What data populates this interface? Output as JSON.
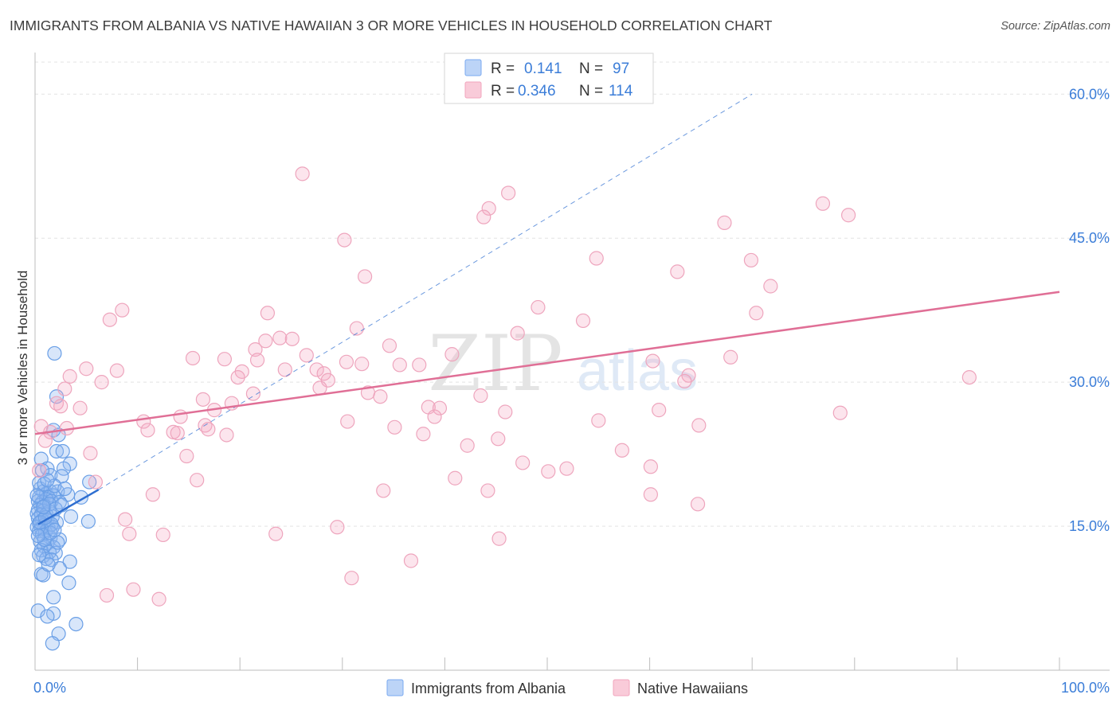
{
  "chart_data": {
    "type": "scatter",
    "title": "IMMIGRANTS FROM ALBANIA VS NATIVE HAWAIIAN 3 OR MORE VEHICLES IN HOUSEHOLD CORRELATION CHART",
    "source": "Source: ZipAtlas.com",
    "watermark": {
      "zip": "ZIP",
      "atlas": "atlas"
    },
    "ylabel": "3 or more Vehicles in Household",
    "xlim": [
      0,
      100
    ],
    "ylim": [
      0,
      64
    ],
    "x_tick_labels": [
      {
        "value": 0,
        "label": "0.0%"
      },
      {
        "value": 100,
        "label": "100.0%"
      }
    ],
    "y_tick_labels": [
      {
        "value": 15,
        "label": "15.0%"
      },
      {
        "value": 30,
        "label": "30.0%"
      },
      {
        "value": 45,
        "label": "45.0%"
      },
      {
        "value": 60,
        "label": "60.0%"
      }
    ],
    "x_minor_ticks": [
      10,
      20,
      30,
      40,
      50,
      60,
      70,
      80,
      90,
      100
    ],
    "grid": true,
    "legend": [
      {
        "name": "Immigrants from Albania",
        "r_label": "R =",
        "r": "0.141",
        "n_label": "N =",
        "n": "97",
        "color": "#7aaaf0",
        "line_color": "#2f6fd1"
      },
      {
        "name": "Native Hawaiians",
        "r_label": "R =",
        "r": "0.346",
        "n_label": "N =",
        "n": "114",
        "color": "#f2a4bd",
        "line_color": "#e06f96"
      }
    ],
    "series": [
      {
        "name": "Immigrants from Albania",
        "trend": {
          "x1": 0.3,
          "y1": 15.2,
          "x2": 6.2,
          "y2": 18.8
        },
        "trend_dashed": {
          "x1": 6.2,
          "y1": 18.8,
          "x2": 70,
          "y2": 60
        },
        "points": [
          [
            1.9,
            33
          ],
          [
            2.1,
            28.5
          ],
          [
            1.8,
            25
          ],
          [
            2.3,
            24.5
          ],
          [
            2.1,
            22.8
          ],
          [
            2.7,
            22.8
          ],
          [
            0.6,
            22
          ],
          [
            3.4,
            21.5
          ],
          [
            1.2,
            21
          ],
          [
            2.8,
            21
          ],
          [
            1.5,
            20.3
          ],
          [
            2.6,
            20.2
          ],
          [
            5.3,
            19.6
          ],
          [
            0.5,
            18.9
          ],
          [
            0.8,
            18.6
          ],
          [
            1.1,
            18.4
          ],
          [
            1.5,
            18.6
          ],
          [
            2.2,
            18.6
          ],
          [
            0.4,
            18
          ],
          [
            1.3,
            18
          ],
          [
            1.8,
            18.2
          ],
          [
            3.2,
            18.3
          ],
          [
            4.5,
            18
          ],
          [
            0.3,
            17.6
          ],
          [
            0.7,
            17.5
          ],
          [
            1.1,
            17.8
          ],
          [
            1.6,
            17.6
          ],
          [
            2.4,
            17.5
          ],
          [
            0.5,
            17.2
          ],
          [
            0.9,
            17.1
          ],
          [
            0.3,
            16.7
          ],
          [
            0.8,
            16.6
          ],
          [
            1.4,
            16.5
          ],
          [
            0.2,
            16.3
          ],
          [
            0.6,
            16.2
          ],
          [
            1.1,
            16.2
          ],
          [
            1.7,
            16
          ],
          [
            3.5,
            16
          ],
          [
            0.3,
            15.8
          ],
          [
            0.7,
            15.6
          ],
          [
            1.2,
            15.6
          ],
          [
            0.4,
            15.3
          ],
          [
            0.9,
            15.1
          ],
          [
            2.1,
            15.4
          ],
          [
            5.2,
            15.5
          ],
          [
            0.2,
            14.9
          ],
          [
            0.6,
            14.8
          ],
          [
            1.3,
            14.8
          ],
          [
            1.7,
            14.9
          ],
          [
            0.4,
            14.5
          ],
          [
            1.0,
            14.4
          ],
          [
            0.7,
            14.1
          ],
          [
            1.5,
            13.8
          ],
          [
            2.4,
            13.6
          ],
          [
            0.5,
            13.4
          ],
          [
            1.2,
            13.2
          ],
          [
            0.9,
            12.9
          ],
          [
            1.8,
            12.8
          ],
          [
            0.6,
            12.5
          ],
          [
            1.4,
            12.3
          ],
          [
            2.0,
            12.2
          ],
          [
            0.8,
            11.9
          ],
          [
            1.1,
            11.6
          ],
          [
            1.6,
            11.5
          ],
          [
            3.4,
            11.3
          ],
          [
            2.4,
            10.6
          ],
          [
            0.6,
            10
          ],
          [
            0.8,
            9.9
          ],
          [
            3.3,
            9.1
          ],
          [
            1.8,
            7.6
          ],
          [
            0.3,
            6.2
          ],
          [
            1.8,
            5.9
          ],
          [
            1.2,
            5.6
          ],
          [
            4.0,
            4.8
          ],
          [
            2.3,
            3.8
          ],
          [
            1.7,
            2.8
          ],
          [
            0.4,
            19.5
          ],
          [
            0.9,
            19.4
          ],
          [
            1.9,
            19.2
          ],
          [
            0.2,
            18.2
          ],
          [
            1.4,
            17.3
          ],
          [
            2.0,
            16.8
          ],
          [
            0.5,
            15.4
          ],
          [
            1.6,
            15.2
          ],
          [
            0.9,
            13.6
          ],
          [
            2.2,
            13.3
          ],
          [
            0.4,
            12.0
          ],
          [
            1.3,
            11.0
          ],
          [
            2.6,
            17.2
          ],
          [
            0.7,
            20.8
          ],
          [
            1.0,
            15.9
          ],
          [
            0.3,
            14.0
          ],
          [
            1.5,
            14.3
          ],
          [
            2.9,
            18.9
          ],
          [
            1.2,
            19.8
          ],
          [
            0.8,
            17.0
          ],
          [
            1.9,
            14.6
          ]
        ]
      },
      {
        "name": "Native Hawaiians",
        "trend": {
          "x1": 0,
          "y1": 24.6,
          "x2": 100,
          "y2": 39.4
        },
        "points": [
          [
            26.1,
            51.7
          ],
          [
            46.2,
            49.7
          ],
          [
            44.3,
            48.1
          ],
          [
            43.8,
            47.2
          ],
          [
            76.9,
            48.6
          ],
          [
            79.4,
            47.4
          ],
          [
            67.3,
            46.6
          ],
          [
            30.2,
            44.8
          ],
          [
            54.8,
            42.9
          ],
          [
            69.9,
            42.7
          ],
          [
            62.7,
            41.5
          ],
          [
            32.2,
            41
          ],
          [
            71.8,
            40
          ],
          [
            49.1,
            37.8
          ],
          [
            8.5,
            37.5
          ],
          [
            22.7,
            37.2
          ],
          [
            53.5,
            36.4
          ],
          [
            7.3,
            36.5
          ],
          [
            70.4,
            37.2
          ],
          [
            31.4,
            35.6
          ],
          [
            47.1,
            35.1
          ],
          [
            23.9,
            34.6
          ],
          [
            25.1,
            34.5
          ],
          [
            22.5,
            34.3
          ],
          [
            21.5,
            33.4
          ],
          [
            34.6,
            33.8
          ],
          [
            40.7,
            32.9
          ],
          [
            26.5,
            32.8
          ],
          [
            15.4,
            32.5
          ],
          [
            18.5,
            32.4
          ],
          [
            67.9,
            32.6
          ],
          [
            60.3,
            32.2
          ],
          [
            21.7,
            32.3
          ],
          [
            30.4,
            32.1
          ],
          [
            31.9,
            31.9
          ],
          [
            35.6,
            31.8
          ],
          [
            37.5,
            31.8
          ],
          [
            24.4,
            31.3
          ],
          [
            5.0,
            31.4
          ],
          [
            8.0,
            31.2
          ],
          [
            27.5,
            31.3
          ],
          [
            28.2,
            30.9
          ],
          [
            20.2,
            31.1
          ],
          [
            19.8,
            30.5
          ],
          [
            3.4,
            30.6
          ],
          [
            28.6,
            30.2
          ],
          [
            63.8,
            30.7
          ],
          [
            91.2,
            30.5
          ],
          [
            6.5,
            30
          ],
          [
            63.4,
            30.1
          ],
          [
            2.9,
            29.3
          ],
          [
            27.8,
            29.4
          ],
          [
            32.5,
            28.9
          ],
          [
            43.5,
            28.6
          ],
          [
            33.7,
            28.5
          ],
          [
            21.3,
            28.8
          ],
          [
            16.4,
            28.2
          ],
          [
            19.2,
            27.8
          ],
          [
            2.1,
            27.8
          ],
          [
            2.5,
            27.5
          ],
          [
            4.4,
            27.3
          ],
          [
            38.4,
            27.4
          ],
          [
            17.5,
            27.1
          ],
          [
            39.5,
            27.3
          ],
          [
            45.9,
            26.9
          ],
          [
            60.9,
            27.1
          ],
          [
            78.6,
            26.8
          ],
          [
            14.2,
            26.4
          ],
          [
            39.0,
            26.4
          ],
          [
            10.6,
            25.9
          ],
          [
            30.5,
            25.9
          ],
          [
            16.6,
            25.5
          ],
          [
            64.8,
            25.5
          ],
          [
            35.1,
            25.3
          ],
          [
            16.9,
            25.1
          ],
          [
            0.6,
            25.4
          ],
          [
            11.0,
            25.0
          ],
          [
            13.5,
            24.8
          ],
          [
            1.5,
            24.8
          ],
          [
            13.9,
            24.7
          ],
          [
            18.7,
            24.5
          ],
          [
            37.9,
            24.6
          ],
          [
            45.2,
            24.1
          ],
          [
            42.2,
            23.4
          ],
          [
            1.0,
            23.9
          ],
          [
            57.3,
            22.9
          ],
          [
            5.4,
            22.6
          ],
          [
            14.8,
            22.3
          ],
          [
            47.6,
            21.6
          ],
          [
            60.1,
            21.2
          ],
          [
            50.1,
            20.7
          ],
          [
            51.9,
            21
          ],
          [
            15.8,
            19.8
          ],
          [
            5.9,
            19.6
          ],
          [
            34.0,
            18.7
          ],
          [
            44.2,
            18.7
          ],
          [
            11.5,
            18.3
          ],
          [
            60.1,
            18.3
          ],
          [
            64.7,
            17.3
          ],
          [
            8.8,
            15.7
          ],
          [
            29.5,
            14.9
          ],
          [
            9.2,
            14.2
          ],
          [
            12.5,
            14.1
          ],
          [
            23.5,
            14.2
          ],
          [
            45.3,
            13.7
          ],
          [
            36.7,
            11.4
          ],
          [
            7.0,
            7.8
          ],
          [
            9.6,
            8.4
          ],
          [
            12.1,
            7.4
          ],
          [
            30.9,
            9.6
          ],
          [
            0.4,
            20.8
          ],
          [
            3.1,
            25.2
          ],
          [
            55.0,
            26.0
          ],
          [
            41.0,
            20.0
          ]
        ]
      }
    ]
  }
}
